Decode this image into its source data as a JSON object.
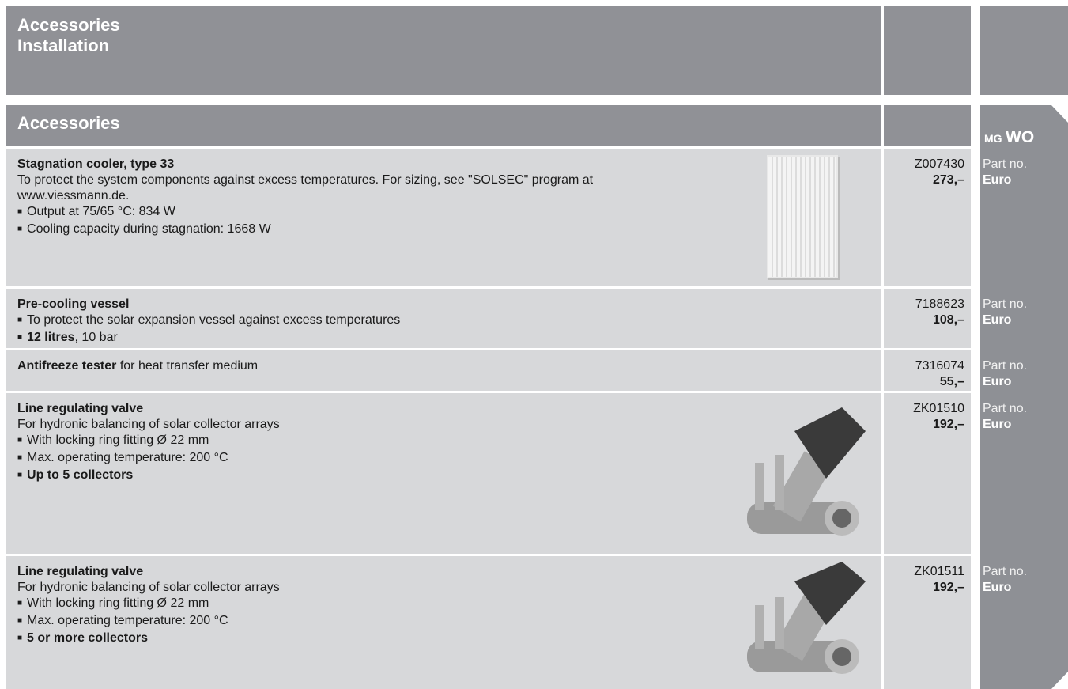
{
  "header": {
    "lines": [
      "Accessories",
      "Installation"
    ]
  },
  "section": {
    "title": "Accessories",
    "mg": "MG",
    "wo": "WO"
  },
  "labels": {
    "part_no": "Part no.",
    "euro": "Euro"
  },
  "items": [
    {
      "title": "Stagnation cooler, type 33",
      "description": "To protect the system components against excess temperatures. For sizing, see \"SOLSEC\" program at www.viessmann.de.",
      "bullets": [
        {
          "text": "Output at 75/65 °C: 834 W"
        },
        {
          "text": "Cooling capacity during stagnation: 1668 W"
        }
      ],
      "part_no": "Z007430",
      "price": "273,–"
    },
    {
      "title": "Pre-cooling vessel",
      "bullets": [
        {
          "text": "To protect the solar expansion vessel against excess temperatures"
        },
        {
          "strong": "12 litres",
          "text": ", 10 bar"
        }
      ],
      "part_no": "7188623",
      "price": "108,–"
    },
    {
      "title": "Antifreeze tester",
      "title_rest": " for heat transfer medium",
      "part_no": "7316074",
      "price": "55,–"
    },
    {
      "title": "Line regulating valve",
      "description": "For hydronic balancing of solar collector arrays",
      "bullets": [
        {
          "text": "With locking ring fitting Ø 22 mm"
        },
        {
          "text": "Max. operating temperature: 200 °C"
        },
        {
          "strong": "Up to 5 collectors"
        }
      ],
      "part_no": "ZK01510",
      "price": "192,–"
    },
    {
      "title": "Line regulating valve",
      "description": "For hydronic balancing of solar collector arrays",
      "bullets": [
        {
          "text": "With locking ring fitting Ø 22 mm"
        },
        {
          "text": "Max. operating temperature: 200 °C"
        },
        {
          "strong": "5 or more collectors"
        }
      ],
      "part_no": "ZK01511",
      "price": "192,–"
    }
  ]
}
